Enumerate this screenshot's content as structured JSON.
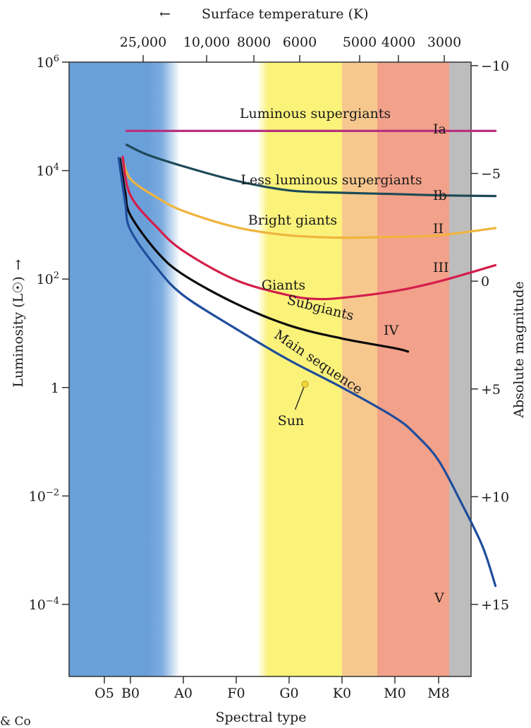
{
  "chart_data": {
    "type": "line",
    "title": "",
    "top_axis": {
      "label": "Surface temperature (K)",
      "ticks": [
        "25,000",
        "10,000",
        "8000",
        "6000",
        "5000",
        "4000",
        "3000"
      ]
    },
    "xlabel": "Spectral type",
    "x_ticks": [
      "O5",
      "B0",
      "A0",
      "F0",
      "G0",
      "K0",
      "M0",
      "M8"
    ],
    "ylabel": "Luminosity (L☉)",
    "y_scale": "log",
    "ylim": [
      1e-05,
      1000000
    ],
    "y_ticks": [
      {
        "value": 1000000,
        "base": "10",
        "exp": "6"
      },
      {
        "value": 10000,
        "base": "10",
        "exp": "4"
      },
      {
        "value": 100,
        "base": "10",
        "exp": "2"
      },
      {
        "value": 1,
        "base": "1",
        "exp": ""
      },
      {
        "value": 0.01,
        "base": "10",
        "exp": "−2"
      },
      {
        "value": 0.0001,
        "base": "10",
        "exp": "−4"
      }
    ],
    "y2label": "Absolute magnitude",
    "y2_ticks": [
      "−10",
      "−5",
      "0",
      "+5",
      "+10",
      "+15"
    ],
    "spectral_bands": [
      {
        "from": "O5",
        "to": "B5",
        "color": "#6aa0da"
      },
      {
        "from": "B5",
        "to": "F5",
        "color": "#ffffff"
      },
      {
        "from": "F5",
        "to": "K0",
        "color": "#fbf27a"
      },
      {
        "from": "K0",
        "to": "K7",
        "color": "#f7c88e"
      },
      {
        "from": "K7",
        "to": "M9",
        "color": "#f2a18a"
      },
      {
        "from": "M9",
        "to": "end",
        "color": "#bdbdbd"
      }
    ],
    "series": [
      {
        "name": "Luminous supergiants",
        "class": "Ia",
        "color": "#b8327e",
        "points": [
          [
            0.85,
            54000
          ],
          [
            2.0,
            54000
          ],
          [
            4.0,
            54000
          ],
          [
            6.0,
            54000
          ],
          [
            8.3,
            54000
          ]
        ]
      },
      {
        "name": "Less luminous supergiants",
        "class": "Ib",
        "color": "#1d4a57",
        "points": [
          [
            0.85,
            30000
          ],
          [
            1.3,
            20000
          ],
          [
            2.0,
            12000
          ],
          [
            3.0,
            6500
          ],
          [
            4.0,
            4300
          ],
          [
            5.0,
            3900
          ],
          [
            6.0,
            3700
          ],
          [
            7.0,
            3500
          ],
          [
            8.3,
            3400
          ]
        ]
      },
      {
        "name": "Bright giants",
        "class": "II",
        "color": "#f0b43c",
        "points": [
          [
            0.7,
            17000
          ],
          [
            1.0,
            7000
          ],
          [
            1.5,
            3200
          ],
          [
            2.0,
            1800
          ],
          [
            3.0,
            900
          ],
          [
            4.0,
            640
          ],
          [
            5.0,
            580
          ],
          [
            6.0,
            600
          ],
          [
            7.0,
            640
          ],
          [
            8.3,
            870
          ]
        ]
      },
      {
        "name": "Giants",
        "class": "III",
        "color": "#d41e4b",
        "points": [
          [
            0.7,
            18000
          ],
          [
            1.0,
            3500
          ],
          [
            1.5,
            900
          ],
          [
            2.0,
            330
          ],
          [
            3.0,
            95
          ],
          [
            4.0,
            50
          ],
          [
            4.5,
            43
          ],
          [
            5.0,
            45
          ],
          [
            6.0,
            60
          ],
          [
            7.0,
            90
          ],
          [
            8.3,
            180
          ]
        ]
      },
      {
        "name": "Subgiants",
        "class": "IV",
        "color": "#0a0a0a",
        "points": [
          [
            0.6,
            16500
          ],
          [
            0.8,
            4000
          ],
          [
            1.0,
            1500
          ],
          [
            1.5,
            320
          ],
          [
            2.0,
            120
          ],
          [
            3.0,
            35
          ],
          [
            4.0,
            14
          ],
          [
            5.0,
            8
          ],
          [
            6.0,
            5.3
          ],
          [
            6.3,
            4.6
          ]
        ]
      },
      {
        "name": "Main sequence",
        "class": "V",
        "color": "#1f4d9c",
        "points": [
          [
            0.55,
            17000
          ],
          [
            0.8,
            2500
          ],
          [
            1.0,
            800
          ],
          [
            1.5,
            160
          ],
          [
            2.0,
            50
          ],
          [
            3.0,
            12
          ],
          [
            4.0,
            3.2
          ],
          [
            5.0,
            1.0
          ],
          [
            6.0,
            0.28
          ],
          [
            6.5,
            0.13
          ],
          [
            7.0,
            0.045
          ],
          [
            7.5,
            0.008
          ],
          [
            8.0,
            0.0012
          ],
          [
            8.3,
            0.00022
          ]
        ]
      }
    ],
    "annotations": [
      {
        "text": "Sun",
        "x": 4.3,
        "y": 1.15
      }
    ],
    "grid": false
  },
  "arrow_glyph": "←",
  "y_arrow_glyph": "→",
  "publisher_fragment": "& Co"
}
